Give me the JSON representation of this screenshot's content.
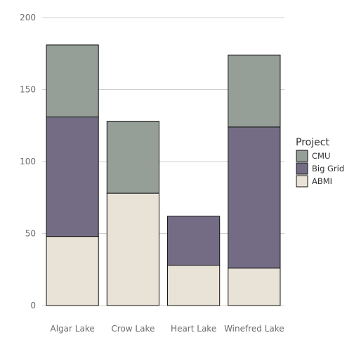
{
  "chart_data": {
    "type": "bar",
    "stacked": true,
    "categories": [
      "Algar Lake",
      "Crow Lake",
      "Heart Lake",
      "Winefred Lake"
    ],
    "series": [
      {
        "name": "ABMI",
        "values": [
          48,
          78,
          28,
          26
        ],
        "color": "#e9e3d7"
      },
      {
        "name": "Big Grid",
        "values": [
          83,
          0,
          34,
          98
        ],
        "color": "#736c84"
      },
      {
        "name": "CMU",
        "values": [
          50,
          50,
          0,
          50
        ],
        "color": "#969f97"
      }
    ],
    "ylim": [
      0,
      200
    ],
    "yticks": [
      0,
      50,
      100,
      150,
      200
    ],
    "grid": true,
    "legend": {
      "title": "Project",
      "placement": "right",
      "order": [
        "CMU",
        "Big Grid",
        "ABMI"
      ]
    },
    "title": "",
    "xlabel": "",
    "ylabel": ""
  }
}
